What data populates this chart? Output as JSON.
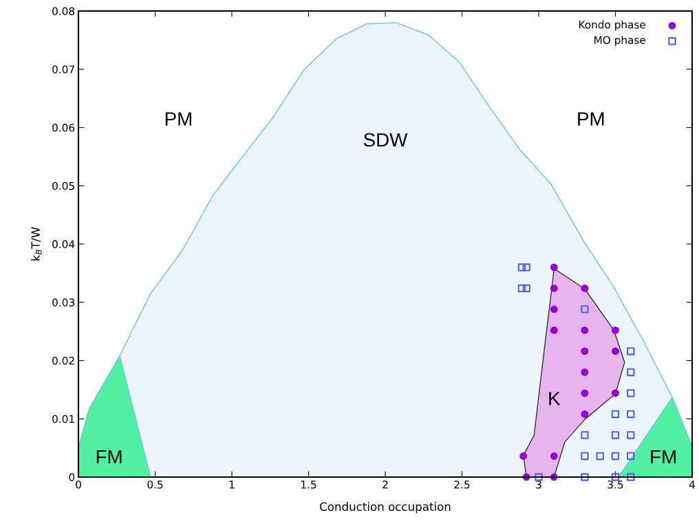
{
  "chart_data": {
    "type": "scatter",
    "xlabel": "Conduction occupation",
    "ylabel": "k$_{B}$T/W",
    "xlim": [
      0,
      4
    ],
    "ylim": [
      0,
      0.08
    ],
    "xticks": [
      0,
      0.5,
      1,
      1.5,
      2,
      2.5,
      3,
      3.5,
      4
    ],
    "yticks": [
      0,
      0.01,
      0.02,
      0.03,
      0.04,
      0.05,
      0.06,
      0.07,
      0.08
    ],
    "grid": false,
    "legend": "top right",
    "series": [
      {
        "type": "area",
        "color": "#ecf5fc",
        "x": [
          0,
          0.07,
          0.27,
          0.47,
          0.68,
          0.88,
          1.07,
          1.27,
          1.47,
          1.68,
          1.88,
          2.07,
          2.28,
          2.48,
          2.68,
          2.88,
          3.08,
          3.29,
          3.48,
          3.68,
          3.87,
          4.0
        ],
        "values": [
          0.005,
          0.0117,
          0.0208,
          0.0315,
          0.039,
          0.0485,
          0.055,
          0.0618,
          0.0699,
          0.0752,
          0.0778,
          0.078,
          0.0759,
          0.0713,
          0.0635,
          0.0561,
          0.0503,
          0.0406,
          0.033,
          0.0235,
          0.0137,
          0.0052
        ]
      },
      {
        "type": "area",
        "color": "#52f0a0",
        "x": [
          0,
          0.07,
          0.27,
          0.47
        ],
        "values": [
          0.005,
          0.0117,
          0.0208,
          0
        ]
      },
      {
        "type": "area",
        "color": "#52f0a0",
        "x": [
          3.52,
          3.87,
          4.0
        ],
        "values": [
          0,
          0.0137,
          0.0052
        ]
      },
      {
        "type": "area",
        "color": "#e8b4f0",
        "x": [
          3.1,
          3.3,
          3.49,
          3.56,
          3.5,
          3.3,
          3.17,
          3.1,
          2.92,
          2.9,
          2.97,
          3.03,
          3.085,
          3.1
        ],
        "values": [
          0.0358,
          0.0323,
          0.0252,
          0.0197,
          0.0143,
          0.0099,
          0.006,
          0,
          0,
          0.0037,
          0.0072,
          0.0205,
          0.0323,
          0.0358
        ]
      },
      {
        "name": "Kondo phase",
        "color": "#9400d3",
        "marker": "circle",
        "x": [
          3.1,
          3.1,
          3.1,
          3.1,
          3.3,
          3.3,
          3.3,
          3.3,
          3.3,
          3.3,
          3.5,
          3.5,
          3.5,
          2.9,
          3.1,
          2.92,
          3.1
        ],
        "values": [
          0.036,
          0.0324,
          0.0288,
          0.0252,
          0.0324,
          0.0252,
          0.0216,
          0.018,
          0.0144,
          0.0108,
          0.0252,
          0.0216,
          0.0144,
          0.0036,
          0.0036,
          0,
          0
        ]
      },
      {
        "name": "MO phase",
        "color": "#5060f0",
        "marker": "square",
        "x": [
          2.89,
          2.92,
          2.89,
          2.92,
          3.3,
          3.6,
          3.6,
          3.6,
          3.5,
          3.6,
          3.3,
          3.5,
          3.6,
          3.3,
          3.4,
          3.5,
          3.6,
          3.0,
          3.3,
          3.5,
          3.6
        ],
        "values": [
          0.036,
          0.036,
          0.0324,
          0.0324,
          0.0288,
          0.0216,
          0.018,
          0.0144,
          0.0108,
          0.0108,
          0.0072,
          0.0072,
          0.0072,
          0.0036,
          0.0036,
          0.0036,
          0.0036,
          0,
          0,
          0,
          0
        ]
      }
    ],
    "annotations": [
      "PM",
      "PM",
      "SDW",
      "K",
      "FM",
      "FM"
    ]
  }
}
